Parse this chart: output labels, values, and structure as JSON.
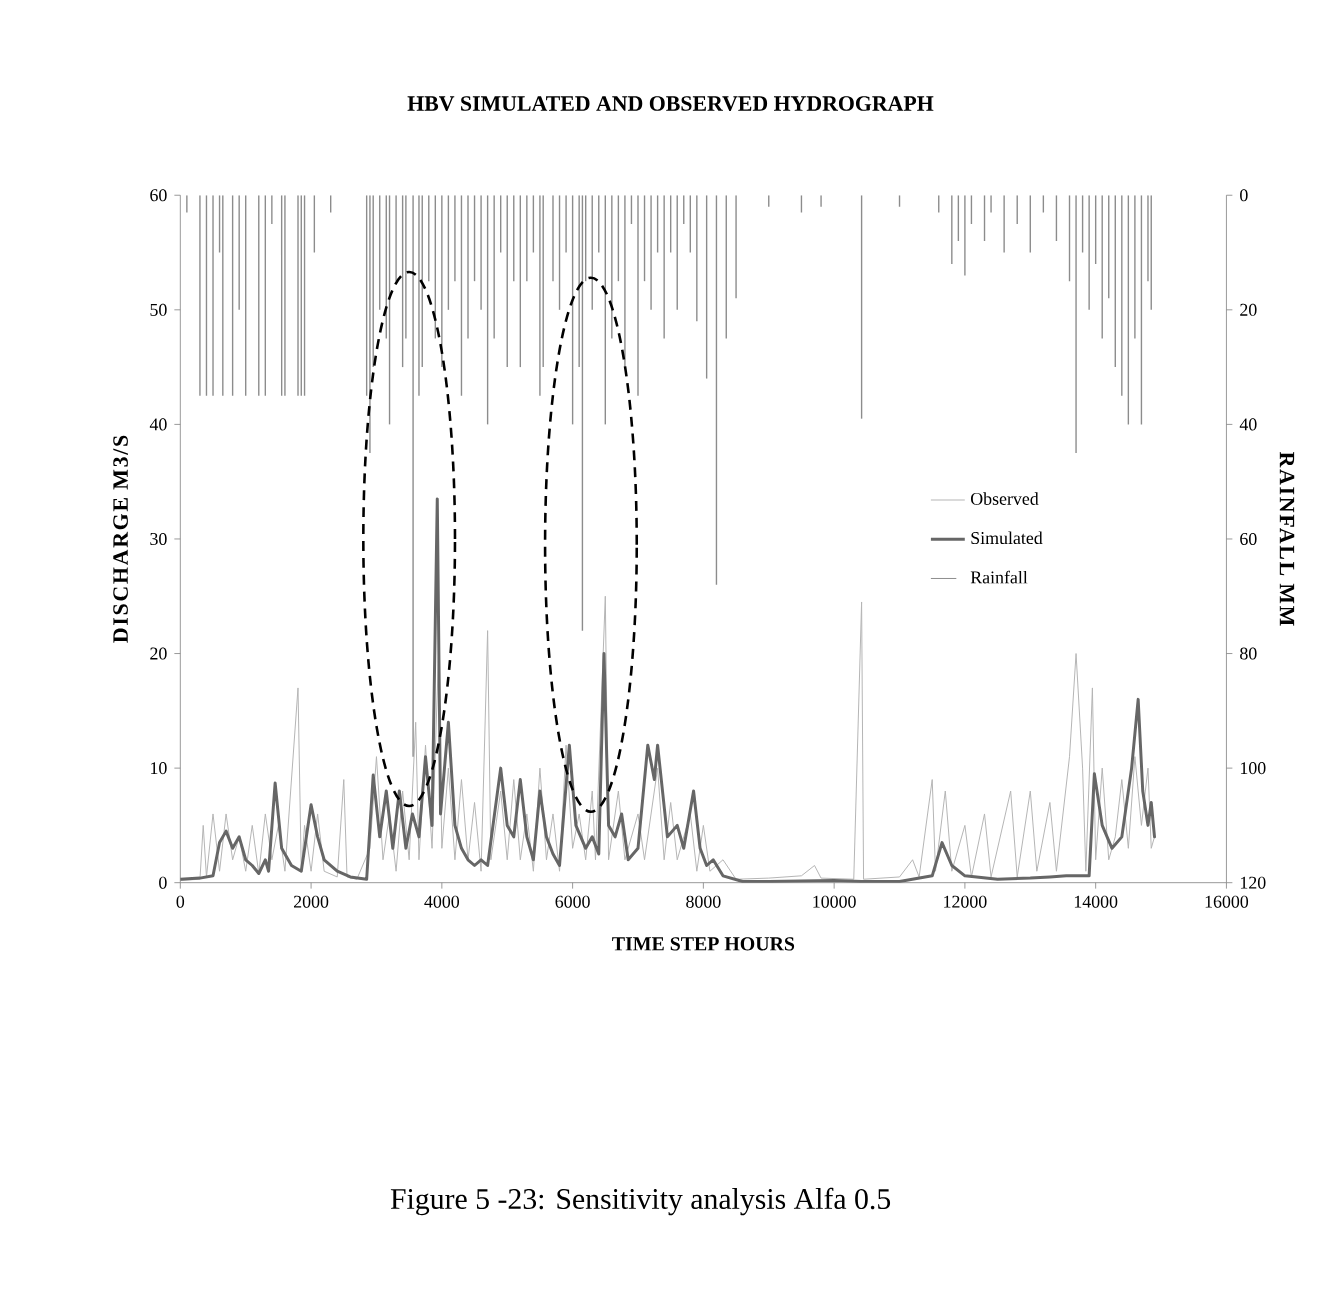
{
  "chart_data": {
    "type": "line",
    "title": "HBV SIMULATED AND OBSERVED HYDROGRAPH",
    "xlabel": "TIME STEP HOURS",
    "ylabel": "DISCHARGE  M3/S",
    "y2label": "RAINFALL  MM",
    "xlim": [
      0,
      16000
    ],
    "xticks": [
      0,
      2000,
      4000,
      6000,
      8000,
      10000,
      12000,
      14000,
      16000
    ],
    "ylim": [
      0,
      60
    ],
    "yticks": [
      0,
      10,
      20,
      30,
      40,
      50,
      60
    ],
    "y2lim": [
      120,
      0
    ],
    "y2ticks": [
      0,
      20,
      40,
      60,
      80,
      100,
      120
    ],
    "legend": "right",
    "marker": "none",
    "annotations": [
      "Figure 5 -23:  Sensitivity analysis Alfa 0.5"
    ],
    "series": [
      {
        "name": "Observed",
        "color": "#b4b4b4",
        "x": [
          0,
          300,
          350,
          400,
          500,
          600,
          700,
          800,
          900,
          1000,
          1100,
          1200,
          1300,
          1400,
          1500,
          1600,
          1800,
          1850,
          1900,
          2000,
          2100,
          2200,
          2400,
          2500,
          2550,
          2700,
          2900,
          3000,
          3100,
          3200,
          3300,
          3400,
          3500,
          3600,
          3650,
          3750,
          3850,
          3950,
          4000,
          4100,
          4200,
          4300,
          4400,
          4500,
          4600,
          4700,
          4750,
          4900,
          5000,
          5100,
          5200,
          5300,
          5400,
          5500,
          5600,
          5700,
          5800,
          5900,
          6000,
          6100,
          6200,
          6300,
          6350,
          6500,
          6550,
          6700,
          6800,
          7000,
          7100,
          7300,
          7400,
          7500,
          7600,
          7800,
          7900,
          8000,
          8100,
          8300,
          8500,
          9000,
          9500,
          9700,
          9800,
          10300,
          10420,
          10450,
          11000,
          11200,
          11300,
          11500,
          11550,
          11700,
          11800,
          12000,
          12100,
          12300,
          12400,
          12700,
          12800,
          13000,
          13100,
          13300,
          13400,
          13600,
          13700,
          13800,
          13850,
          13950,
          14000,
          14100,
          14200,
          14300,
          14400,
          14500,
          14600,
          14700,
          14800,
          14850,
          14900
        ],
        "values": [
          0.2,
          0.3,
          5,
          0.5,
          6,
          1,
          6,
          2,
          4,
          1,
          5,
          0.8,
          6,
          2,
          5,
          1,
          17,
          1,
          5,
          1,
          6,
          1,
          0.5,
          9,
          0.5,
          0.3,
          3,
          11,
          2,
          6,
          1,
          8,
          2,
          14,
          2,
          12,
          3,
          20,
          3,
          10,
          2,
          9,
          2,
          7,
          1,
          22,
          2,
          8,
          2,
          9,
          2,
          6,
          1,
          10,
          2,
          6,
          1,
          12,
          3,
          6,
          2,
          8,
          2,
          25,
          2,
          8,
          2,
          6,
          2,
          10,
          2,
          7,
          2,
          6,
          1,
          5,
          1,
          2,
          0.3,
          0.4,
          0.6,
          1.5,
          0.4,
          0.3,
          24.5,
          0.3,
          0.5,
          2,
          0.5,
          9,
          1,
          8,
          1,
          5,
          0.5,
          6,
          0.5,
          8,
          0.5,
          8,
          1,
          7,
          1,
          11,
          20,
          10,
          1,
          17,
          2,
          10,
          2,
          4,
          9,
          3,
          11,
          5,
          10,
          3,
          4
        ]
      },
      {
        "name": "Simulated",
        "color": "#666666",
        "x": [
          0,
          300,
          500,
          600,
          700,
          800,
          900,
          1000,
          1100,
          1200,
          1300,
          1350,
          1450,
          1550,
          1700,
          1850,
          2000,
          2100,
          2200,
          2400,
          2600,
          2850,
          2950,
          3050,
          3150,
          3250,
          3350,
          3450,
          3550,
          3650,
          3750,
          3850,
          3930,
          3980,
          4100,
          4200,
          4300,
          4400,
          4500,
          4600,
          4700,
          4900,
          5000,
          5100,
          5200,
          5300,
          5400,
          5500,
          5600,
          5700,
          5800,
          5950,
          6050,
          6200,
          6300,
          6400,
          6480,
          6550,
          6650,
          6750,
          6850,
          7000,
          7150,
          7250,
          7300,
          7450,
          7600,
          7700,
          7850,
          7950,
          8050,
          8150,
          8300,
          8600,
          9000,
          10000,
          10420,
          11000,
          11500,
          11650,
          11800,
          12000,
          12500,
          13000,
          13300,
          13550,
          13900,
          13980,
          14100,
          14250,
          14400,
          14550,
          14650,
          14720,
          14800,
          14850,
          14900
        ],
        "values": [
          0.3,
          0.4,
          0.6,
          3.5,
          4.5,
          3,
          4,
          2,
          1.5,
          0.8,
          2,
          1,
          8.7,
          3,
          1.5,
          1,
          6.8,
          4,
          2,
          1,
          0.5,
          0.3,
          9.4,
          4,
          8,
          3,
          8,
          3,
          6,
          4,
          11,
          5,
          33.5,
          6,
          14,
          5,
          3,
          2,
          1.5,
          2,
          1.5,
          10,
          5,
          4,
          9,
          4,
          2,
          8,
          4,
          2.5,
          1.5,
          12,
          5,
          3,
          4,
          2.5,
          20,
          5,
          4,
          6,
          2,
          3,
          12,
          9,
          12,
          4,
          5,
          3,
          8,
          3,
          1.5,
          2,
          0.6,
          0.1,
          0.1,
          0.2,
          0.1,
          0.1,
          0.6,
          3.5,
          1.5,
          0.6,
          0.3,
          0.4,
          0.5,
          0.6,
          0.6,
          9.5,
          5,
          3,
          4,
          10,
          16,
          8,
          5,
          7,
          4
        ]
      },
      {
        "name": "Rainfall",
        "type": "bar",
        "axis": "y2",
        "color": "#8c8c8c",
        "x": [
          100,
          300,
          400,
          500,
          600,
          650,
          800,
          900,
          1000,
          1200,
          1300,
          1400,
          1550,
          1600,
          1800,
          1850,
          1900,
          2050,
          2300,
          2850,
          2900,
          2950,
          3050,
          3150,
          3200,
          3300,
          3400,
          3450,
          3560,
          3650,
          3700,
          3800,
          3900,
          4000,
          4100,
          4200,
          4300,
          4400,
          4500,
          4600,
          4700,
          4800,
          4900,
          5000,
          5100,
          5200,
          5300,
          5400,
          5500,
          5550,
          5700,
          5800,
          5900,
          6000,
          6100,
          6150,
          6200,
          6300,
          6400,
          6500,
          6600,
          6700,
          6800,
          6900,
          7000,
          7100,
          7200,
          7300,
          7400,
          7500,
          7600,
          7700,
          7800,
          7900,
          8050,
          8200,
          8350,
          8500,
          9000,
          9500,
          9800,
          10420,
          11000,
          11600,
          11800,
          11900,
          12000,
          12100,
          12300,
          12400,
          12600,
          12800,
          13000,
          13200,
          13400,
          13600,
          13700,
          13800,
          13900,
          14000,
          14100,
          14200,
          14300,
          14400,
          14500,
          14600,
          14700,
          14800,
          14850
        ],
        "values": [
          3,
          35,
          35,
          35,
          10,
          35,
          35,
          20,
          35,
          35,
          35,
          5,
          35,
          35,
          35,
          35,
          35,
          10,
          3,
          35,
          45,
          30,
          20,
          25,
          40,
          15,
          30,
          25,
          98,
          35,
          30,
          15,
          25,
          30,
          20,
          15,
          35,
          25,
          15,
          20,
          40,
          25,
          10,
          30,
          15,
          30,
          15,
          10,
          35,
          30,
          15,
          20,
          10,
          40,
          30,
          76,
          15,
          20,
          10,
          40,
          25,
          15,
          30,
          5,
          35,
          15,
          20,
          10,
          25,
          10,
          20,
          5,
          10,
          22,
          32,
          68,
          25,
          18,
          2,
          3,
          2,
          39,
          2,
          3,
          12,
          8,
          14,
          5,
          8,
          3,
          10,
          5,
          10,
          3,
          8,
          15,
          45,
          10,
          20,
          12,
          25,
          18,
          30,
          35,
          40,
          25,
          40,
          15,
          20
        ]
      }
    ]
  }
}
